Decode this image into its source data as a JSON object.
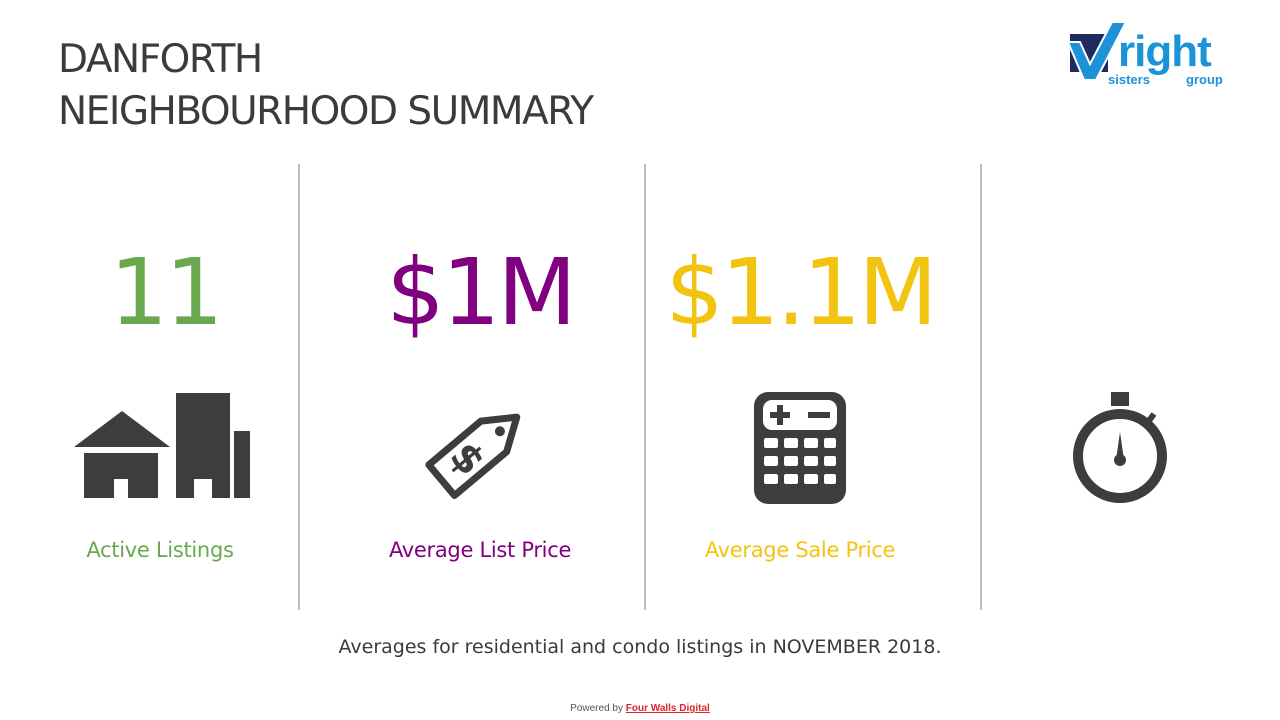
{
  "header": {
    "title_line1": "DANFORTH",
    "title_line2": "NEIGHBOURHOOD SUMMARY"
  },
  "logo": {
    "word": "right",
    "sub_left": "sisters",
    "sub_right": "group",
    "colors": {
      "navy": "#1f2b5e",
      "blue": "#1b93d6"
    }
  },
  "stats": [
    {
      "value": "11",
      "label": "Active Listings",
      "icon": "house-buildings-icon",
      "color": "#6aa84f"
    },
    {
      "value": "$1M",
      "label": "Average List Price",
      "icon": "price-tag-icon",
      "color": "#800080"
    },
    {
      "value": "$1.1M",
      "label": "Average Sale Price",
      "icon": "calculator-icon",
      "color": "#f3c311"
    },
    {
      "value": "",
      "label": "",
      "icon": "stopwatch-icon",
      "color": "#3d3d3d"
    }
  ],
  "footnote": "Averages for residential and condo listings in NOVEMBER 2018.",
  "powered": {
    "prefix": "Powered by",
    "link": "Four Walls Digital"
  },
  "colors": {
    "icon": "#3d3d3d",
    "divider": "#bdbdbd",
    "title": "#3b3b3b",
    "link": "#d9262b"
  }
}
